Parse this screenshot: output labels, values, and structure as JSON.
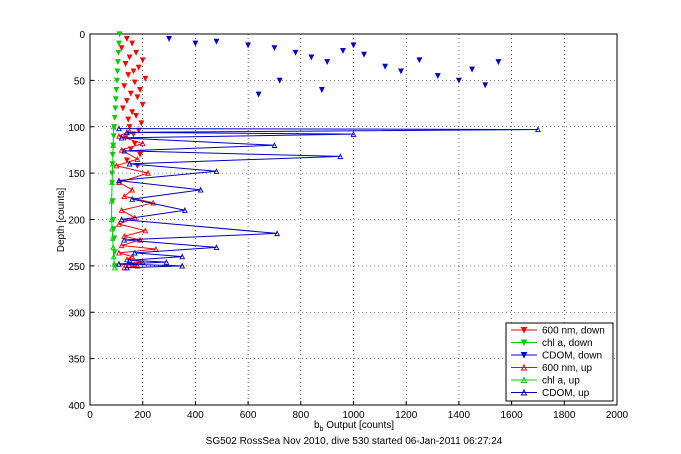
{
  "chart_data": {
    "type": "scatter",
    "title": "",
    "caption": "SG502 RossSea Nov 2010, dive 530 started 06-Jan-2011 06:27:24",
    "xlabel_main": "b",
    "xlabel_sub": "b",
    "xlabel_rest": " Output [counts]",
    "ylabel": "Depth [counts]",
    "xlim": [
      0,
      2000
    ],
    "ylim": [
      0,
      400
    ],
    "y_reversed": true,
    "grid": true,
    "legend_position": "bottom-right",
    "xticks": [
      "0",
      "200",
      "400",
      "600",
      "800",
      "1000",
      "1200",
      "1400",
      "1600",
      "1800",
      "2000"
    ],
    "yticks": [
      "0",
      "50",
      "100",
      "150",
      "200",
      "250",
      "300",
      "350",
      "400"
    ],
    "series": [
      {
        "name": "600 nm, down",
        "color": "#ff0000",
        "marker": "triangle-down",
        "line": false,
        "x": [
          140,
          160,
          120,
          175,
          150,
          200,
          135,
          185,
          165,
          145,
          210,
          170,
          130,
          190,
          155,
          180,
          140,
          200,
          125,
          160,
          175,
          145,
          195,
          150,
          185,
          165,
          135,
          170,
          155,
          190,
          140,
          180
        ],
        "y": [
          5,
          10,
          15,
          20,
          25,
          28,
          32,
          36,
          40,
          44,
          48,
          52,
          56,
          60,
          64,
          68,
          72,
          76,
          80,
          84,
          88,
          92,
          96,
          100,
          104,
          108,
          112,
          118,
          124,
          130,
          136,
          142
        ]
      },
      {
        "name": "chl a, down",
        "color": "#00cc00",
        "marker": "triangle-down",
        "line": false,
        "x": [
          112,
          110,
          108,
          106,
          104,
          102,
          100,
          98,
          96,
          94,
          92,
          90,
          88,
          86,
          86,
          84,
          84,
          86,
          88,
          90,
          92,
          94,
          96
        ],
        "y": [
          0,
          10,
          20,
          30,
          40,
          50,
          60,
          70,
          80,
          90,
          100,
          110,
          120,
          130,
          140,
          150,
          160,
          180,
          200,
          210,
          220,
          235,
          250
        ]
      },
      {
        "name": "CDOM, down",
        "color": "#0000cc",
        "marker": "triangle-down",
        "line": false,
        "x": [
          300,
          400,
          480,
          600,
          700,
          780,
          840,
          900,
          960,
          1040,
          1120,
          1180,
          1250,
          1320,
          1400,
          1450,
          1500,
          1550,
          1000,
          880,
          640,
          720
        ],
        "y": [
          5,
          10,
          8,
          12,
          15,
          20,
          25,
          30,
          18,
          22,
          35,
          40,
          28,
          45,
          50,
          38,
          55,
          30,
          12,
          60,
          65,
          50
        ]
      },
      {
        "name": "600 nm, up",
        "color": "#ff0000",
        "marker": "triangle-up",
        "line": true,
        "x": [
          150,
          110,
          200,
          120,
          180,
          100,
          220,
          110,
          160,
          130,
          240,
          120,
          170,
          110,
          210,
          130,
          190,
          120,
          250,
          110,
          160,
          140,
          200,
          110,
          180,
          130
        ],
        "y": [
          105,
          110,
          118,
          125,
          135,
          142,
          150,
          160,
          168,
          175,
          182,
          190,
          198,
          205,
          212,
          218,
          222,
          228,
          232,
          236,
          240,
          243,
          246,
          248,
          250,
          252
        ]
      },
      {
        "name": "chl a, up",
        "color": "#00cc00",
        "marker": "triangle-up",
        "line": true,
        "x": [
          90,
          88,
          86,
          84,
          82,
          82,
          84,
          86,
          88,
          90,
          92,
          94
        ],
        "y": [
          100,
          120,
          140,
          160,
          180,
          200,
          210,
          220,
          230,
          240,
          248,
          252
        ]
      },
      {
        "name": "CDOM, up",
        "color": "#0000cc",
        "marker": "triangle-up",
        "line": true,
        "x": [
          110,
          1700,
          140,
          1000,
          120,
          700,
          130,
          950,
          150,
          480,
          110,
          420,
          160,
          360,
          120,
          710,
          130,
          480,
          170,
          350,
          150,
          290,
          110,
          350,
          140
        ],
        "y": [
          102,
          103,
          106,
          108,
          112,
          120,
          126,
          132,
          140,
          148,
          158,
          168,
          178,
          190,
          200,
          215,
          222,
          230,
          236,
          240,
          244,
          246,
          248,
          250,
          252
        ]
      }
    ]
  }
}
